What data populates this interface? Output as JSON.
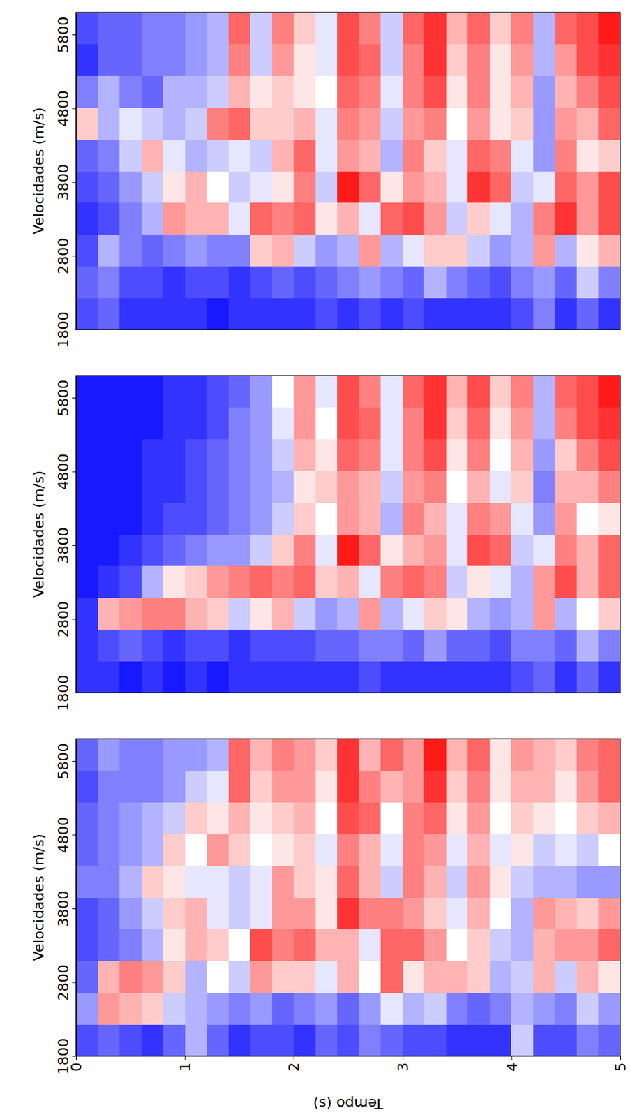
{
  "chart_data": [
    {
      "type": "heatmap",
      "y_label": "Velocidades (m/s)",
      "x": [
        0.1,
        0.3,
        0.5,
        0.7,
        0.9,
        1.1,
        1.3,
        1.5,
        1.7,
        1.9,
        2.1,
        2.3,
        2.5,
        2.7,
        2.9,
        3.1,
        3.3,
        3.5,
        3.7,
        3.9,
        4.1,
        4.3,
        4.5,
        4.7,
        4.9
      ],
      "y": [
        2015,
        2445,
        2875,
        3305,
        3735,
        4165,
        4595,
        5025,
        5455,
        5885
      ],
      "values": [
        [
          -0.7,
          -0.6,
          -0.8,
          -0.8,
          -0.8,
          -0.8,
          -0.9,
          -0.8,
          -0.8,
          -0.8,
          -0.8,
          -0.7,
          -0.8,
          -0.7,
          -0.8,
          -0.7,
          -0.8,
          -0.8,
          -0.8,
          -0.8,
          -0.7,
          -0.5,
          -0.8,
          -0.6,
          -0.8
        ],
        [
          -0.6,
          -0.5,
          -0.7,
          -0.7,
          -0.8,
          -0.7,
          -0.7,
          -0.8,
          -0.7,
          -0.6,
          -0.7,
          -0.6,
          -0.5,
          -0.4,
          -0.5,
          -0.6,
          -0.3,
          -0.5,
          -0.6,
          -0.7,
          -0.5,
          -0.4,
          -0.6,
          -0.2,
          -0.5
        ],
        [
          -0.7,
          -0.3,
          -0.5,
          -0.6,
          -0.5,
          -0.4,
          -0.5,
          -0.5,
          0.2,
          0.3,
          -0.2,
          -0.4,
          -0.3,
          0.4,
          -0.3,
          -0.1,
          0.2,
          0.2,
          -0.2,
          -0.4,
          -0.3,
          0.4,
          -0.3,
          0.1,
          0.3
        ],
        [
          -0.8,
          -0.7,
          -0.5,
          -0.3,
          0.4,
          0.3,
          0.3,
          -0.1,
          0.6,
          0.5,
          0.6,
          0.1,
          0.3,
          -0.1,
          0.6,
          0.7,
          0.4,
          -0.2,
          0.2,
          -0.1,
          -0.3,
          0.5,
          0.8,
          0.4,
          0.7
        ],
        [
          -0.7,
          -0.6,
          -0.4,
          -0.2,
          0.1,
          0.3,
          0.0,
          -0.2,
          -0.1,
          0.1,
          0.5,
          -0.2,
          0.9,
          0.6,
          0.1,
          0.4,
          0.3,
          -0.1,
          0.8,
          0.6,
          -0.2,
          -0.1,
          0.6,
          0.4,
          0.7
        ],
        [
          -0.6,
          -0.5,
          -0.2,
          0.3,
          -0.1,
          -0.3,
          -0.2,
          -0.1,
          -0.2,
          0.3,
          0.6,
          -0.1,
          0.4,
          0.3,
          -0.3,
          0.5,
          0.2,
          -0.1,
          0.6,
          0.5,
          -0.1,
          -0.4,
          0.5,
          0.1,
          0.2
        ],
        [
          0.2,
          -0.3,
          -0.1,
          -0.2,
          -0.3,
          -0.2,
          0.5,
          0.6,
          0.2,
          0.2,
          0.3,
          -0.1,
          0.5,
          0.4,
          -0.2,
          0.4,
          0.5,
          0.0,
          0.4,
          0.1,
          0.2,
          -0.4,
          0.4,
          0.3,
          0.6
        ],
        [
          -0.5,
          -0.3,
          -0.5,
          -0.6,
          -0.3,
          -0.3,
          -0.2,
          0.3,
          0.1,
          0.2,
          0.1,
          0.0,
          0.6,
          0.5,
          -0.1,
          0.5,
          0.7,
          0.1,
          0.5,
          0.1,
          0.3,
          -0.4,
          0.3,
          0.5,
          0.7
        ],
        [
          -0.8,
          -0.6,
          -0.6,
          -0.5,
          -0.5,
          -0.4,
          -0.3,
          0.5,
          -0.2,
          0.4,
          0.1,
          -0.1,
          0.7,
          0.6,
          -0.2,
          0.5,
          0.8,
          0.2,
          0.5,
          0.1,
          0.4,
          -0.3,
          0.4,
          0.7,
          0.8
        ],
        [
          -0.7,
          -0.6,
          -0.6,
          -0.5,
          -0.5,
          -0.4,
          -0.3,
          0.6,
          -0.2,
          0.5,
          0.2,
          -0.1,
          0.7,
          0.5,
          -0.2,
          0.6,
          0.8,
          0.3,
          0.6,
          0.2,
          0.5,
          -0.3,
          0.6,
          0.7,
          0.9
        ]
      ],
      "zlim": [
        -1,
        1
      ],
      "xlim": [
        0,
        5
      ],
      "ylim": [
        1800,
        6100
      ],
      "yticks": [
        1800,
        2800,
        3800,
        4800,
        5800
      ],
      "tick_labels": "y"
    },
    {
      "type": "heatmap",
      "y_label": "Velocidades (m/s)",
      "x": [
        0.1,
        0.3,
        0.5,
        0.7,
        0.9,
        1.1,
        1.3,
        1.5,
        1.7,
        1.9,
        2.1,
        2.3,
        2.5,
        2.7,
        2.9,
        3.1,
        3.3,
        3.5,
        3.7,
        3.9,
        4.1,
        4.3,
        4.5,
        4.7,
        4.9
      ],
      "y": [
        2015,
        2445,
        2875,
        3305,
        3735,
        4165,
        4595,
        5025,
        5455,
        5885
      ],
      "values": [
        [
          -0.8,
          -0.8,
          -0.9,
          -0.8,
          -0.9,
          -0.8,
          -0.9,
          -0.8,
          -0.8,
          -0.8,
          -0.8,
          -0.8,
          -0.8,
          -0.7,
          -0.8,
          -0.8,
          -0.8,
          -0.8,
          -0.8,
          -0.8,
          -0.7,
          -0.6,
          -0.8,
          -0.6,
          -0.8
        ],
        [
          -0.8,
          -0.7,
          -0.6,
          -0.7,
          -0.8,
          -0.7,
          -0.7,
          -0.8,
          -0.7,
          -0.7,
          -0.7,
          -0.6,
          -0.6,
          -0.5,
          -0.5,
          -0.6,
          -0.4,
          -0.6,
          -0.6,
          -0.7,
          -0.5,
          -0.5,
          -0.6,
          -0.3,
          -0.5
        ],
        [
          -0.8,
          0.3,
          0.4,
          0.5,
          0.5,
          0.3,
          0.2,
          -0.2,
          0.1,
          0.3,
          -0.2,
          -0.4,
          -0.3,
          0.4,
          -0.3,
          -0.1,
          0.2,
          0.1,
          -0.3,
          -0.4,
          -0.3,
          0.4,
          -0.3,
          0.0,
          0.2
        ],
        [
          -0.9,
          -0.8,
          -0.7,
          -0.3,
          0.1,
          0.2,
          0.4,
          0.5,
          0.6,
          0.5,
          0.6,
          0.2,
          0.3,
          -0.1,
          0.5,
          0.6,
          0.5,
          -0.2,
          0.1,
          -0.1,
          -0.3,
          0.4,
          0.7,
          0.3,
          0.6
        ],
        [
          -0.9,
          -0.9,
          -0.8,
          -0.7,
          -0.6,
          -0.5,
          -0.4,
          -0.4,
          -0.2,
          0.2,
          0.5,
          -0.1,
          0.9,
          0.6,
          0.1,
          0.3,
          0.4,
          -0.1,
          0.7,
          0.6,
          -0.2,
          -0.1,
          0.5,
          0.3,
          0.6
        ],
        [
          -0.9,
          -0.9,
          -0.9,
          -0.8,
          -0.7,
          -0.7,
          -0.6,
          -0.5,
          -0.4,
          -0.2,
          0.2,
          0.0,
          0.4,
          0.3,
          -0.3,
          0.5,
          0.3,
          -0.1,
          0.5,
          0.4,
          -0.1,
          -0.4,
          0.4,
          0.0,
          0.1
        ],
        [
          -0.9,
          -0.9,
          -0.9,
          -0.8,
          -0.8,
          -0.7,
          -0.6,
          -0.5,
          -0.4,
          -0.3,
          0.1,
          0.2,
          0.4,
          0.3,
          -0.2,
          0.4,
          0.5,
          0.0,
          0.3,
          -0.1,
          0.2,
          -0.5,
          0.3,
          0.3,
          0.5
        ],
        [
          -0.9,
          -0.9,
          -0.9,
          -0.8,
          -0.8,
          -0.7,
          -0.6,
          -0.5,
          -0.4,
          -0.2,
          0.3,
          0.1,
          0.6,
          0.5,
          -0.1,
          0.5,
          0.7,
          0.1,
          0.5,
          0.0,
          0.3,
          -0.4,
          0.2,
          0.5,
          0.7
        ],
        [
          -0.9,
          -0.9,
          -0.9,
          -0.9,
          -0.8,
          -0.8,
          -0.7,
          -0.5,
          -0.4,
          -0.1,
          0.4,
          0.0,
          0.7,
          0.6,
          -0.1,
          0.5,
          0.8,
          0.2,
          0.6,
          0.1,
          0.4,
          -0.3,
          0.5,
          0.7,
          0.8
        ],
        [
          -0.9,
          -0.9,
          -0.9,
          -0.9,
          -0.8,
          -0.8,
          -0.7,
          -0.6,
          -0.4,
          0.0,
          0.4,
          -0.1,
          0.7,
          0.5,
          -0.1,
          0.6,
          0.8,
          0.3,
          0.7,
          0.2,
          0.5,
          -0.3,
          0.6,
          0.7,
          0.9
        ]
      ],
      "zlim": [
        -1,
        1
      ],
      "xlim": [
        0,
        5
      ],
      "ylim": [
        1800,
        6100
      ],
      "yticks": [
        1800,
        2800,
        3800,
        4800,
        5800
      ],
      "tick_labels": "y"
    },
    {
      "type": "heatmap",
      "y_label": "Velocidades (m/s)",
      "x_label": "Tempo (s)",
      "x": [
        0.1,
        0.3,
        0.5,
        0.7,
        0.9,
        1.1,
        1.3,
        1.5,
        1.7,
        1.9,
        2.1,
        2.3,
        2.5,
        2.7,
        2.9,
        3.1,
        3.3,
        3.5,
        3.7,
        3.9,
        4.1,
        4.3,
        4.5,
        4.7,
        4.9
      ],
      "y": [
        2015,
        2445,
        2875,
        3305,
        3735,
        4165,
        4595,
        5025,
        5455,
        5885
      ],
      "values": [
        [
          -0.7,
          -0.6,
          -0.7,
          -0.8,
          -0.6,
          -0.3,
          -0.6,
          -0.8,
          -0.7,
          -0.7,
          -0.8,
          -0.6,
          -0.7,
          -0.5,
          -0.6,
          -0.7,
          -0.7,
          -0.8,
          -0.8,
          -0.8,
          -0.2,
          -0.7,
          -0.7,
          -0.5,
          -0.6
        ],
        [
          -0.4,
          0.4,
          0.3,
          0.2,
          -0.2,
          -0.3,
          -0.4,
          -0.5,
          -0.4,
          -0.6,
          -0.5,
          -0.4,
          -0.6,
          -0.4,
          -0.1,
          -0.3,
          -0.2,
          -0.5,
          -0.6,
          -0.5,
          -0.3,
          -0.4,
          -0.5,
          -0.2,
          -0.4
        ],
        [
          -0.6,
          0.3,
          0.5,
          0.4,
          0.2,
          -0.3,
          0.0,
          -0.2,
          0.4,
          0.2,
          0.2,
          -0.1,
          0.3,
          0.0,
          0.6,
          0.1,
          0.3,
          0.3,
          0.2,
          -0.3,
          -0.2,
          0.3,
          -0.2,
          0.3,
          0.1
        ],
        [
          -0.7,
          -0.6,
          -0.5,
          -0.3,
          0.1,
          0.3,
          0.2,
          0.0,
          0.7,
          0.5,
          0.6,
          0.3,
          0.3,
          -0.1,
          0.6,
          0.6,
          0.4,
          0.0,
          0.2,
          -0.2,
          -0.3,
          0.3,
          0.4,
          0.4,
          0.6
        ],
        [
          -0.7,
          -0.6,
          -0.4,
          -0.2,
          0.2,
          0.3,
          -0.1,
          -0.2,
          -0.1,
          0.4,
          0.4,
          0.1,
          0.8,
          0.5,
          0.5,
          0.4,
          0.2,
          -0.1,
          0.3,
          0.0,
          -0.3,
          0.4,
          0.3,
          0.2,
          0.4
        ],
        [
          -0.5,
          -0.5,
          -0.3,
          0.2,
          0.1,
          -0.1,
          -0.1,
          -0.2,
          -0.1,
          0.4,
          0.2,
          0.1,
          0.6,
          0.3,
          -0.2,
          0.5,
          0.3,
          -0.2,
          0.4,
          0.1,
          -0.2,
          -0.3,
          -0.3,
          -0.4,
          -0.4
        ],
        [
          -0.6,
          -0.5,
          -0.4,
          -0.3,
          0.2,
          0.0,
          0.4,
          0.2,
          0.0,
          0.1,
          0.2,
          -0.1,
          0.5,
          0.3,
          -0.1,
          0.5,
          0.4,
          -0.1,
          0.3,
          -0.1,
          0.1,
          -0.2,
          -0.1,
          -0.2,
          0.0
        ],
        [
          -0.6,
          -0.5,
          -0.4,
          -0.3,
          -0.2,
          0.2,
          0.1,
          0.3,
          0.1,
          0.2,
          0.3,
          0.0,
          0.7,
          0.6,
          0.0,
          0.5,
          0.6,
          0.1,
          0.4,
          0.0,
          0.2,
          0.1,
          0.0,
          0.2,
          0.3
        ],
        [
          -0.7,
          -0.5,
          -0.5,
          -0.5,
          -0.4,
          -0.2,
          -0.1,
          0.6,
          0.2,
          0.4,
          0.4,
          0.1,
          0.8,
          0.5,
          0.3,
          0.4,
          0.8,
          0.2,
          0.5,
          0.1,
          0.3,
          0.3,
          0.1,
          0.4,
          0.6
        ],
        [
          -0.6,
          -0.4,
          -0.5,
          -0.5,
          -0.4,
          -0.4,
          -0.3,
          0.6,
          0.3,
          0.5,
          0.4,
          0.2,
          0.8,
          0.3,
          0.6,
          0.4,
          0.9,
          0.3,
          0.6,
          0.1,
          0.4,
          0.3,
          0.2,
          0.5,
          0.6
        ]
      ],
      "zlim": [
        -1,
        1
      ],
      "xlim": [
        0,
        5
      ],
      "ylim": [
        1800,
        6100
      ],
      "xticks": [
        0,
        1,
        2,
        3,
        4,
        5
      ],
      "yticks": [
        1800,
        2800,
        3800,
        4800,
        5800
      ]
    }
  ]
}
